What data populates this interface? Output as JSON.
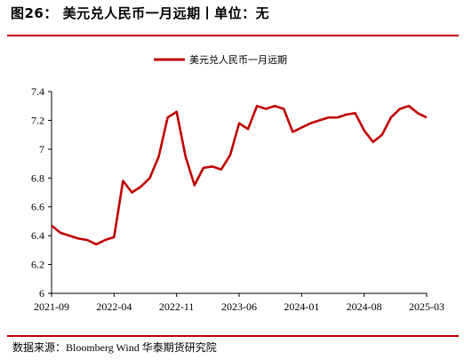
{
  "header": {
    "title": "图26：   美元兑人民币一月远期丨单位：无"
  },
  "footer": {
    "source": "数据来源：Bloomberg Wind 华泰期货研究院"
  },
  "colors": {
    "accent": "#c00000",
    "series": "#c00000"
  },
  "chart_data": {
    "type": "line",
    "title": "",
    "xlabel": "",
    "ylabel": "",
    "ylim": [
      6,
      7.4
    ],
    "yticks": [
      "6",
      "6.2",
      "6.4",
      "6.6",
      "6.8",
      "7",
      "7.2",
      "7.4"
    ],
    "xticks": [
      "2021-09",
      "2022-04",
      "2022-11",
      "2023-06",
      "2024-01",
      "2024-08",
      "2025-03"
    ],
    "legend": "top-center",
    "grid": false,
    "series": [
      {
        "name": "美元兑人民币一月远期",
        "x": [
          "2021-09",
          "2021-10",
          "2021-11",
          "2021-12",
          "2022-01",
          "2022-02",
          "2022-03",
          "2022-04",
          "2022-05",
          "2022-06",
          "2022-07",
          "2022-08",
          "2022-09",
          "2022-10",
          "2022-11",
          "2022-12",
          "2023-01",
          "2023-02",
          "2023-03",
          "2023-04",
          "2023-05",
          "2023-06",
          "2023-07",
          "2023-08",
          "2023-09",
          "2023-10",
          "2023-11",
          "2023-12",
          "2024-01",
          "2024-02",
          "2024-03",
          "2024-04",
          "2024-05",
          "2024-06",
          "2024-07",
          "2024-08",
          "2024-09",
          "2024-10",
          "2024-11",
          "2024-12",
          "2025-01",
          "2025-02",
          "2025-03"
        ],
        "y": [
          6.47,
          6.42,
          6.4,
          6.38,
          6.37,
          6.34,
          6.37,
          6.39,
          6.78,
          6.7,
          6.74,
          6.8,
          6.95,
          7.22,
          7.26,
          6.95,
          6.75,
          6.87,
          6.88,
          6.86,
          6.96,
          7.18,
          7.14,
          7.3,
          7.28,
          7.3,
          7.28,
          7.12,
          7.15,
          7.18,
          7.2,
          7.22,
          7.22,
          7.24,
          7.25,
          7.13,
          7.05,
          7.1,
          7.22,
          7.28,
          7.3,
          7.25,
          7.22
        ]
      }
    ]
  }
}
